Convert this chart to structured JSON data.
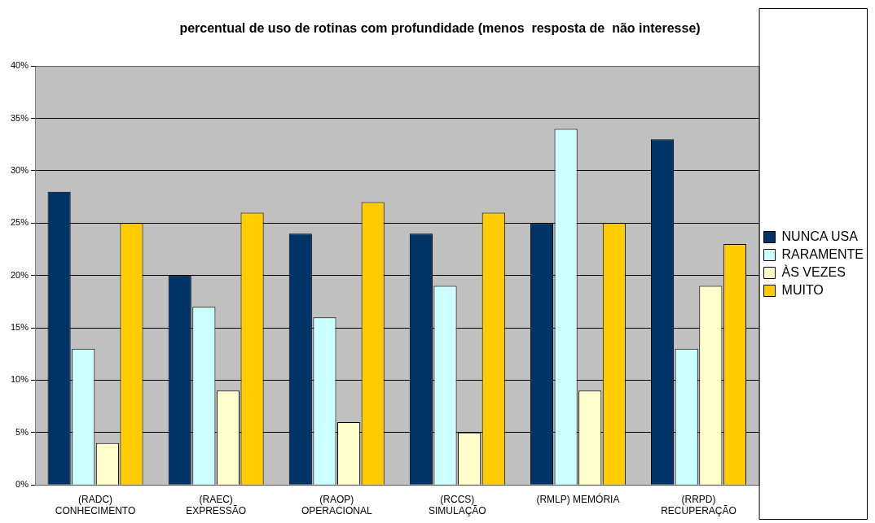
{
  "chart_data": {
    "type": "bar",
    "title": "percentual de uso de rotinas com profundidade (menos  resposta de  não interesse)",
    "categories": [
      "(RADC)\nCONHECIMENTO",
      "(RAEC)\nEXPRESSÃO",
      "(RAOP)\nOPERACIONAL",
      "(RCCS)\nSIMULAÇÃO",
      "(RMLP) MEMÓRIA",
      "(RRPD)\nRECUPERAÇÃO"
    ],
    "series": [
      {
        "name": "NUNCA USA",
        "color": "#003366",
        "values": [
          28,
          20,
          24,
          24,
          25,
          33
        ]
      },
      {
        "name": "RARAMENTE",
        "color": "#ccffff",
        "values": [
          13,
          17,
          16,
          19,
          34,
          13
        ]
      },
      {
        "name": "ÀS VEZES",
        "color": "#ffffcc",
        "values": [
          4,
          9,
          6,
          5,
          9,
          19
        ]
      },
      {
        "name": "MUITO",
        "color": "#ffcc00",
        "values": [
          25,
          26,
          27,
          26,
          25,
          23
        ]
      }
    ],
    "ylim": [
      0,
      40
    ],
    "yticks": [
      {
        "value": 0,
        "label": "0%"
      },
      {
        "value": 5,
        "label": "5%"
      },
      {
        "value": 10,
        "label": "10%"
      },
      {
        "value": 15,
        "label": "15%"
      },
      {
        "value": 20,
        "label": "20%"
      },
      {
        "value": 25,
        "label": "25%"
      },
      {
        "value": 30,
        "label": "30%"
      },
      {
        "value": 35,
        "label": "35%"
      },
      {
        "value": 40,
        "label": "40%"
      }
    ],
    "grid": "y",
    "legend": "right"
  }
}
